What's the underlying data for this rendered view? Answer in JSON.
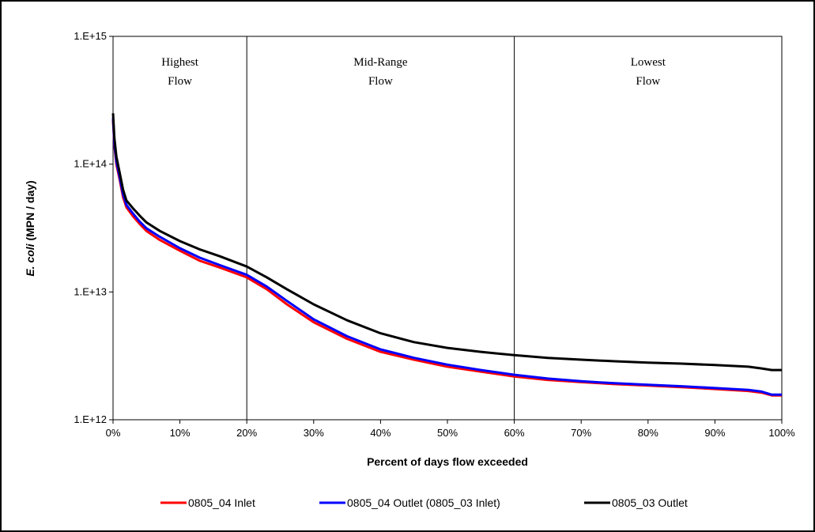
{
  "chart_data": {
    "type": "line",
    "xlabel": "Percent of days flow exceeded",
    "ylabel_italic": "E. coli",
    "ylabel_rest": " (MPN / day)",
    "yscale": "log",
    "ylim": [
      1000000000000.0,
      1000000000000000.0
    ],
    "xlim": [
      0,
      100
    ],
    "x_ticks": [
      0,
      10,
      20,
      30,
      40,
      50,
      60,
      70,
      80,
      90,
      100
    ],
    "x_tick_labels": [
      "0%",
      "10%",
      "20%",
      "30%",
      "40%",
      "50%",
      "60%",
      "70%",
      "80%",
      "90%",
      "100%"
    ],
    "y_ticks": [
      1000000000000.0,
      10000000000000.0,
      100000000000000.0,
      1000000000000000.0
    ],
    "y_tick_labels": [
      "1.E+12",
      "1.E+13",
      "1.E+14",
      "1.E+15"
    ],
    "grid": false,
    "legend_position": "bottom",
    "regions": [
      {
        "line1": "Highest",
        "line2": "Flow",
        "from": 0,
        "to": 20
      },
      {
        "line1": "Mid-Range",
        "line2": "Flow",
        "from": 20,
        "to": 60
      },
      {
        "line1": "Lowest",
        "line2": "Flow",
        "from": 60,
        "to": 100
      }
    ],
    "dividers": [
      20,
      60
    ],
    "series": [
      {
        "name": "0805_04 Inlet",
        "color": "#ff0000",
        "x": [
          0,
          0.2,
          0.5,
          1,
          1.5,
          2,
          3,
          4,
          5,
          7,
          10,
          13,
          16,
          20,
          23,
          26,
          30,
          35,
          40,
          45,
          50,
          55,
          60,
          65,
          70,
          75,
          80,
          85,
          90,
          95,
          97,
          98.5,
          100
        ],
        "y": [
          220000000000000.0,
          140000000000000.0,
          100000000000000.0,
          75000000000000.0,
          55000000000000.0,
          46000000000000.0,
          39000000000000.0,
          34000000000000.0,
          30000000000000.0,
          25500000000000.0,
          21000000000000.0,
          17500000000000.0,
          15500000000000.0,
          13000000000000.0,
          10500000000000.0,
          8000000000000.0,
          5800000000000.0,
          4300000000000.0,
          3400000000000.0,
          2950000000000.0,
          2600000000000.0,
          2380000000000.0,
          2180000000000.0,
          2050000000000.0,
          1970000000000.0,
          1900000000000.0,
          1850000000000.0,
          1800000000000.0,
          1740000000000.0,
          1680000000000.0,
          1630000000000.0,
          1550000000000.0,
          1550000000000.0
        ]
      },
      {
        "name": "0805_04 Outlet (0805_03 Inlet)",
        "color": "#0000ff",
        "x": [
          0,
          0.2,
          0.5,
          1,
          1.5,
          2,
          3,
          4,
          5,
          7,
          10,
          13,
          16,
          20,
          23,
          26,
          30,
          35,
          40,
          45,
          50,
          55,
          60,
          65,
          70,
          75,
          80,
          85,
          90,
          95,
          97,
          98.5,
          100
        ],
        "y": [
          230000000000000.0,
          145000000000000.0,
          105000000000000.0,
          78000000000000.0,
          58000000000000.0,
          48000000000000.0,
          41000000000000.0,
          35500000000000.0,
          31500000000000.0,
          27000000000000.0,
          22000000000000.0,
          18500000000000.0,
          16200000000000.0,
          13600000000000.0,
          11000000000000.0,
          8500000000000.0,
          6100000000000.0,
          4500000000000.0,
          3550000000000.0,
          3050000000000.0,
          2700000000000.0,
          2450000000000.0,
          2250000000000.0,
          2100000000000.0,
          2000000000000.0,
          1930000000000.0,
          1880000000000.0,
          1830000000000.0,
          1770000000000.0,
          1710000000000.0,
          1660000000000.0,
          1570000000000.0,
          1570000000000.0
        ]
      },
      {
        "name": "0805_03 Outlet",
        "color": "#000000",
        "x": [
          0,
          0.2,
          0.5,
          1,
          1.5,
          2,
          3,
          4,
          5,
          7,
          10,
          13,
          16,
          20,
          23,
          26,
          30,
          35,
          40,
          45,
          50,
          55,
          60,
          65,
          70,
          75,
          80,
          85,
          90,
          95,
          97,
          98.5,
          100
        ],
        "y": [
          250000000000000.0,
          160000000000000.0,
          115000000000000.0,
          85000000000000.0,
          63000000000000.0,
          52000000000000.0,
          45000000000000.0,
          39500000000000.0,
          35000000000000.0,
          30000000000000.0,
          25000000000000.0,
          21500000000000.0,
          19000000000000.0,
          15800000000000.0,
          13000000000000.0,
          10500000000000.0,
          8000000000000.0,
          6000000000000.0,
          4750000000000.0,
          4050000000000.0,
          3650000000000.0,
          3400000000000.0,
          3200000000000.0,
          3050000000000.0,
          2950000000000.0,
          2870000000000.0,
          2800000000000.0,
          2750000000000.0,
          2680000000000.0,
          2600000000000.0,
          2520000000000.0,
          2450000000000.0,
          2450000000000.0
        ]
      }
    ]
  }
}
